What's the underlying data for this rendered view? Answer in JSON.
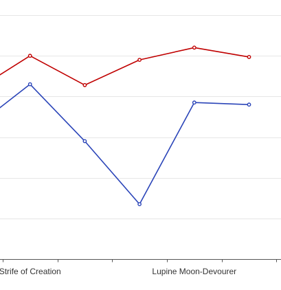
{
  "chart_data": {
    "type": "line",
    "title": "",
    "xlabel": "",
    "ylabel": "",
    "categories": [
      "",
      "Strife of Creation",
      "",
      "",
      "Lupine Moon-Devourer",
      ""
    ],
    "ylim": [
      0,
      6
    ],
    "grid": true,
    "legend": "none",
    "series": [
      {
        "color": "#c00000",
        "values": [
          4.15,
          5.0,
          4.28,
          4.9,
          5.2,
          4.97
        ]
      },
      {
        "color": "#2a44b8",
        "values": [
          3.25,
          4.3,
          2.9,
          1.35,
          3.85,
          3.8
        ]
      }
    ]
  }
}
